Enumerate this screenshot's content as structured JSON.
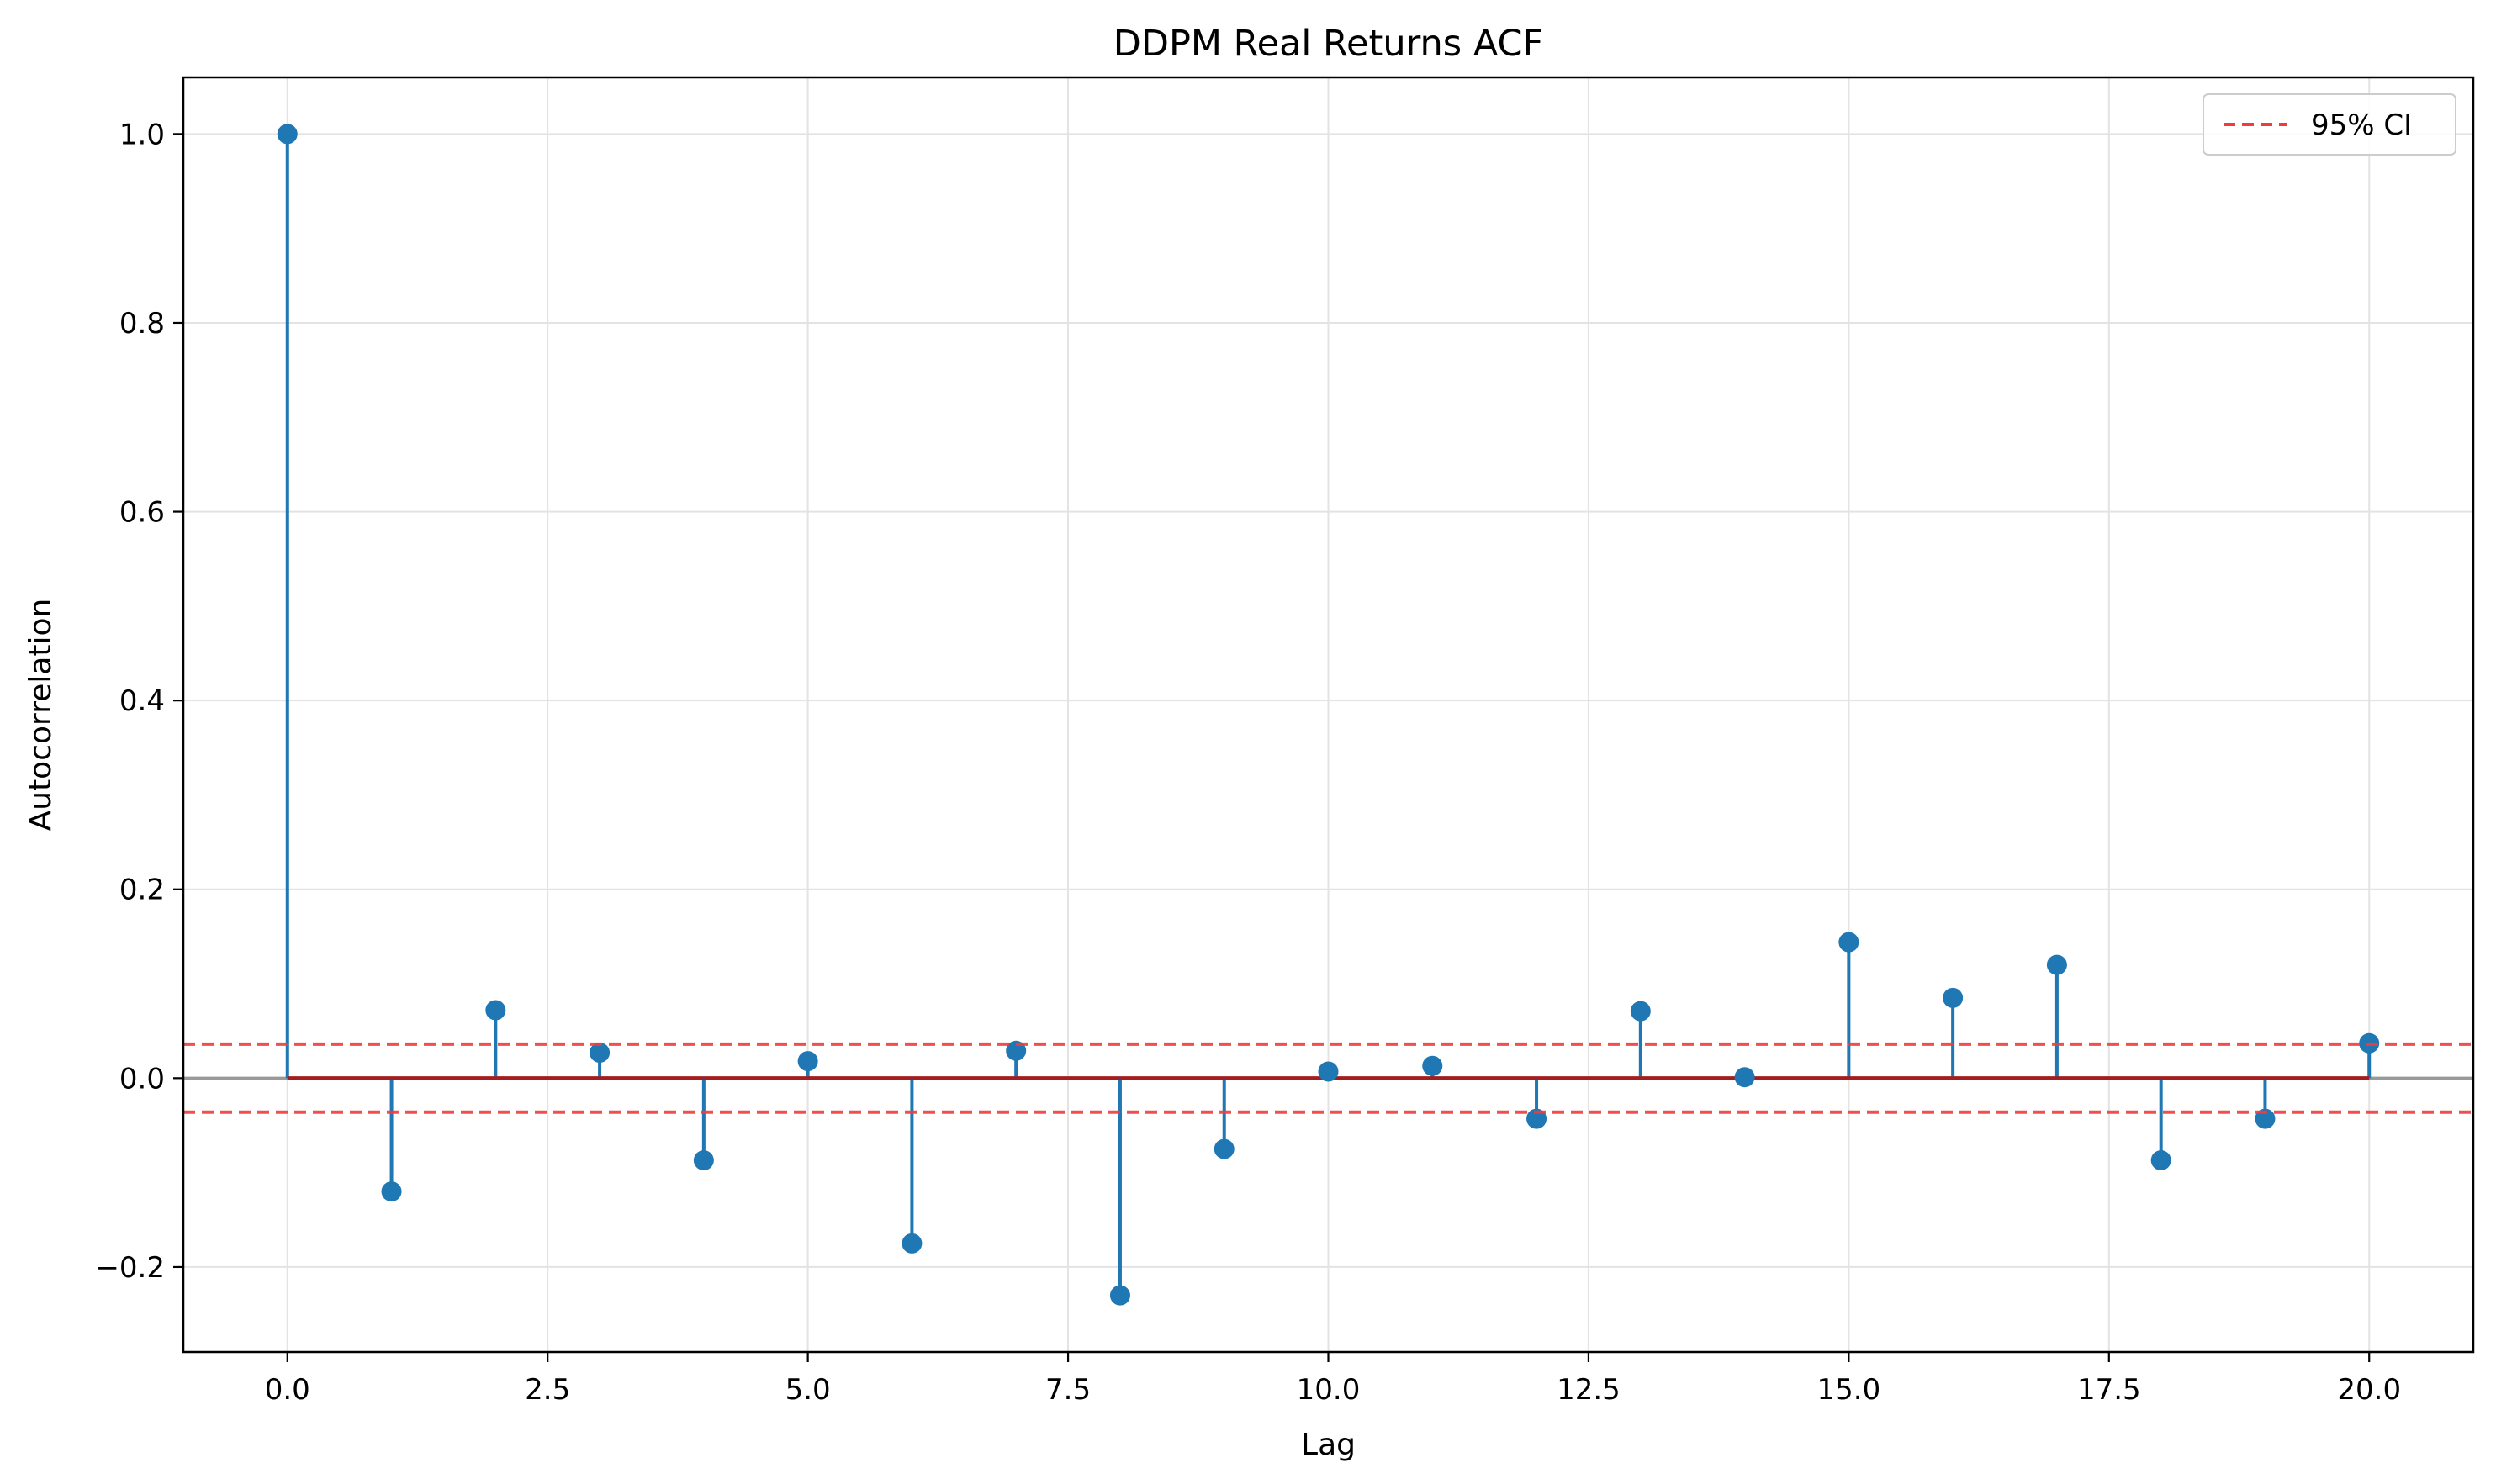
{
  "chart_data": {
    "type": "stem",
    "title": "DDPM Real Returns ACF",
    "xlabel": "Lag",
    "ylabel": "Autocorrelation",
    "xlim": [
      -1,
      21
    ],
    "ylim": [
      -0.29,
      1.06
    ],
    "x_ticks": [
      0.0,
      2.5,
      5.0,
      7.5,
      10.0,
      12.5,
      15.0,
      17.5,
      20.0
    ],
    "x_tick_labels": [
      "0.0",
      "2.5",
      "5.0",
      "7.5",
      "10.0",
      "12.5",
      "15.0",
      "17.5",
      "20.0"
    ],
    "y_ticks": [
      -0.2,
      0.0,
      0.2,
      0.4,
      0.6,
      0.8,
      1.0
    ],
    "y_tick_labels": [
      "−0.2",
      "0.0",
      "0.2",
      "0.4",
      "0.6",
      "0.8",
      "1.0"
    ],
    "grid": true,
    "series": [
      {
        "lags": [
          0,
          1,
          2,
          3,
          4,
          5,
          6,
          7,
          8,
          9,
          10,
          11,
          12,
          13,
          14,
          15,
          16,
          17,
          18,
          19,
          20
        ],
        "values": [
          1.0,
          -0.12,
          0.072,
          0.027,
          -0.087,
          0.018,
          -0.175,
          0.029,
          -0.23,
          -0.075,
          0.007,
          0.013,
          -0.043,
          0.071,
          0.001,
          0.144,
          0.085,
          0.12,
          -0.087,
          -0.043,
          0.037
        ],
        "color": "#1f77b4"
      }
    ],
    "confidence_interval": {
      "label": "95% CI",
      "upper": 0.036,
      "lower": -0.036,
      "color": "#f03c3c",
      "style": "dashed"
    },
    "zero_line_color": "#999999",
    "baseline_color": "#a31e1e",
    "legend": {
      "position": "top-right",
      "entries": [
        "95% CI"
      ]
    }
  }
}
